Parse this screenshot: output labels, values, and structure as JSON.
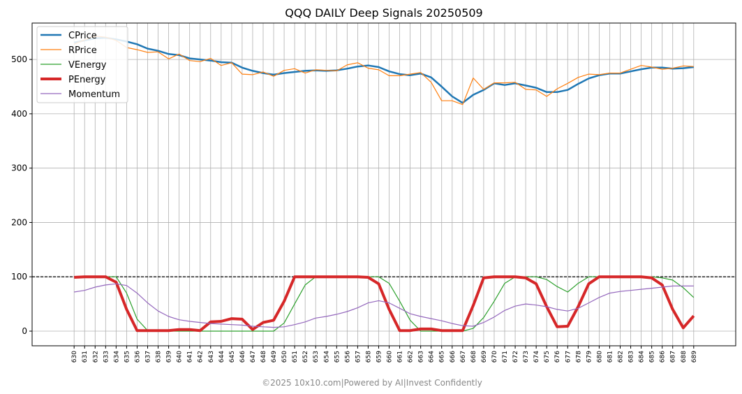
{
  "chart_data": {
    "type": "line",
    "title": "QQQ DAILY Deep Signals 20250509",
    "xlabel": "",
    "ylabel": "",
    "x": [
      630,
      631,
      632,
      633,
      634,
      635,
      636,
      637,
      638,
      639,
      640,
      641,
      642,
      643,
      644,
      645,
      646,
      647,
      648,
      649,
      650,
      651,
      652,
      653,
      654,
      655,
      656,
      657,
      658,
      659,
      660,
      661,
      662,
      663,
      664,
      665,
      666,
      667,
      668,
      669,
      670,
      671,
      672,
      673,
      674,
      675,
      676,
      677,
      678,
      679,
      680,
      681,
      682,
      683,
      684,
      685,
      686,
      687,
      688,
      689
    ],
    "xlim": [
      626,
      693
    ],
    "ylim": [
      -27,
      567
    ],
    "yticks": [
      0,
      100,
      200,
      300,
      400,
      500
    ],
    "reference_line": {
      "y": 100,
      "style": "dashed",
      "color": "#000000"
    },
    "grid": true,
    "legend_position": "upper-left",
    "series": [
      {
        "name": "CPrice",
        "color": "#1f77b4",
        "width": 2.5,
        "values": [
          531,
          535,
          539,
          540,
          537,
          533,
          528,
          520,
          516,
          510,
          508,
          502,
          500,
          498,
          495,
          494,
          485,
          479,
          475,
          472,
          475,
          477,
          479,
          480,
          479,
          480,
          483,
          487,
          489,
          486,
          478,
          473,
          471,
          474,
          467,
          450,
          432,
          420,
          435,
          444,
          456,
          453,
          456,
          452,
          448,
          440,
          440,
          444,
          455,
          465,
          471,
          474,
          474,
          478,
          482,
          485,
          485,
          483,
          484,
          486
        ]
      },
      {
        "name": "RPrice",
        "color": "#ff7f0e",
        "width": 1.2,
        "values": [
          528,
          536,
          543,
          541,
          535,
          522,
          518,
          513,
          514,
          501,
          510,
          498,
          496,
          502,
          489,
          494,
          473,
          472,
          477,
          469,
          480,
          483,
          475,
          481,
          480,
          479,
          490,
          494,
          484,
          481,
          470,
          470,
          473,
          476,
          458,
          424,
          424,
          417,
          466,
          445,
          457,
          457,
          458,
          445,
          444,
          432,
          446,
          456,
          467,
          473,
          472,
          475,
          475,
          482,
          489,
          486,
          482,
          484,
          488,
          487
        ]
      },
      {
        "name": "VEnergy",
        "color": "#2ca02c",
        "width": 1.2,
        "values": [
          100,
          100,
          100,
          100,
          100,
          70,
          22,
          1,
          1,
          0,
          0,
          0,
          0,
          0,
          0,
          0,
          0,
          0,
          0,
          0,
          15,
          50,
          85,
          100,
          100,
          100,
          100,
          100,
          100,
          100,
          88,
          55,
          20,
          0,
          0,
          0,
          0,
          0,
          5,
          25,
          55,
          88,
          100,
          100,
          100,
          95,
          82,
          72,
          88,
          100,
          100,
          100,
          100,
          100,
          100,
          100,
          98,
          94,
          80,
          62
        ]
      },
      {
        "name": "PEnergy",
        "color": "#d62728",
        "width": 4,
        "values": [
          99,
          100,
          100,
          100,
          90,
          40,
          1,
          1,
          1,
          1,
          3,
          3,
          1,
          17,
          18,
          23,
          22,
          3,
          16,
          20,
          55,
          100,
          100,
          100,
          100,
          100,
          100,
          100,
          99,
          87,
          40,
          1,
          1,
          4,
          4,
          1,
          1,
          1,
          47,
          98,
          100,
          100,
          100,
          98,
          87,
          45,
          8,
          9,
          45,
          87,
          100,
          100,
          100,
          100,
          100,
          98,
          85,
          40,
          6,
          28
        ]
      },
      {
        "name": "Momentum",
        "color": "#9467bd",
        "width": 1.2,
        "values": [
          72,
          75,
          81,
          85,
          87,
          84,
          70,
          52,
          37,
          27,
          21,
          18,
          16,
          14,
          13,
          12,
          11,
          9,
          8,
          7,
          8,
          12,
          17,
          24,
          27,
          31,
          36,
          43,
          52,
          56,
          52,
          42,
          32,
          27,
          23,
          19,
          14,
          10,
          9,
          16,
          26,
          38,
          46,
          50,
          48,
          45,
          40,
          37,
          42,
          52,
          62,
          70,
          73,
          75,
          77,
          79,
          81,
          83,
          83,
          83
        ]
      }
    ]
  },
  "footer": "©2025 10x10.com|Powered by AI|Invest Confidently"
}
